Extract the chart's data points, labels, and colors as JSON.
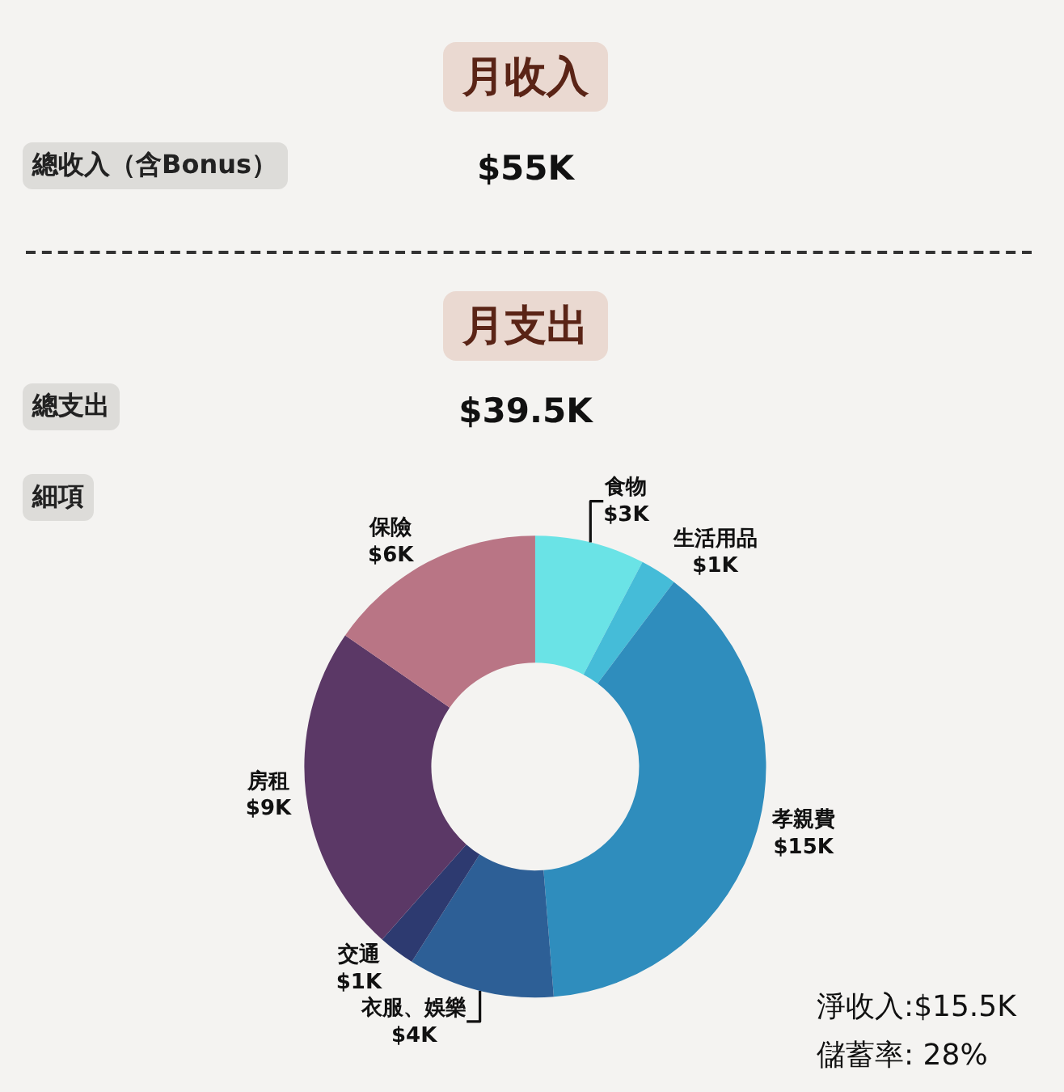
{
  "chart_data": {
    "type": "donut",
    "categories": [
      "食物",
      "生活用品",
      "孝親費",
      "衣服、娛樂",
      "交通",
      "房租",
      "保險"
    ],
    "values": [
      3,
      1,
      15,
      4,
      1,
      9,
      6
    ],
    "value_labels": [
      "$3K",
      "$1K",
      "$15K",
      "$4K",
      "$1K",
      "$9K",
      "$6K"
    ],
    "colors": [
      "#6ae3e6",
      "#45bcd8",
      "#2f8dbd",
      "#2d5f96",
      "#2d3a70",
      "#5b3866",
      "#b97585"
    ],
    "annotations": [
      "月收入",
      "總收入（含Bonus）",
      "$55K",
      "月支出",
      "總支出",
      "$39.5K",
      "細項",
      "淨收入:$15.5K",
      "儲蓄率: 28%"
    ],
    "legend": false
  }
}
